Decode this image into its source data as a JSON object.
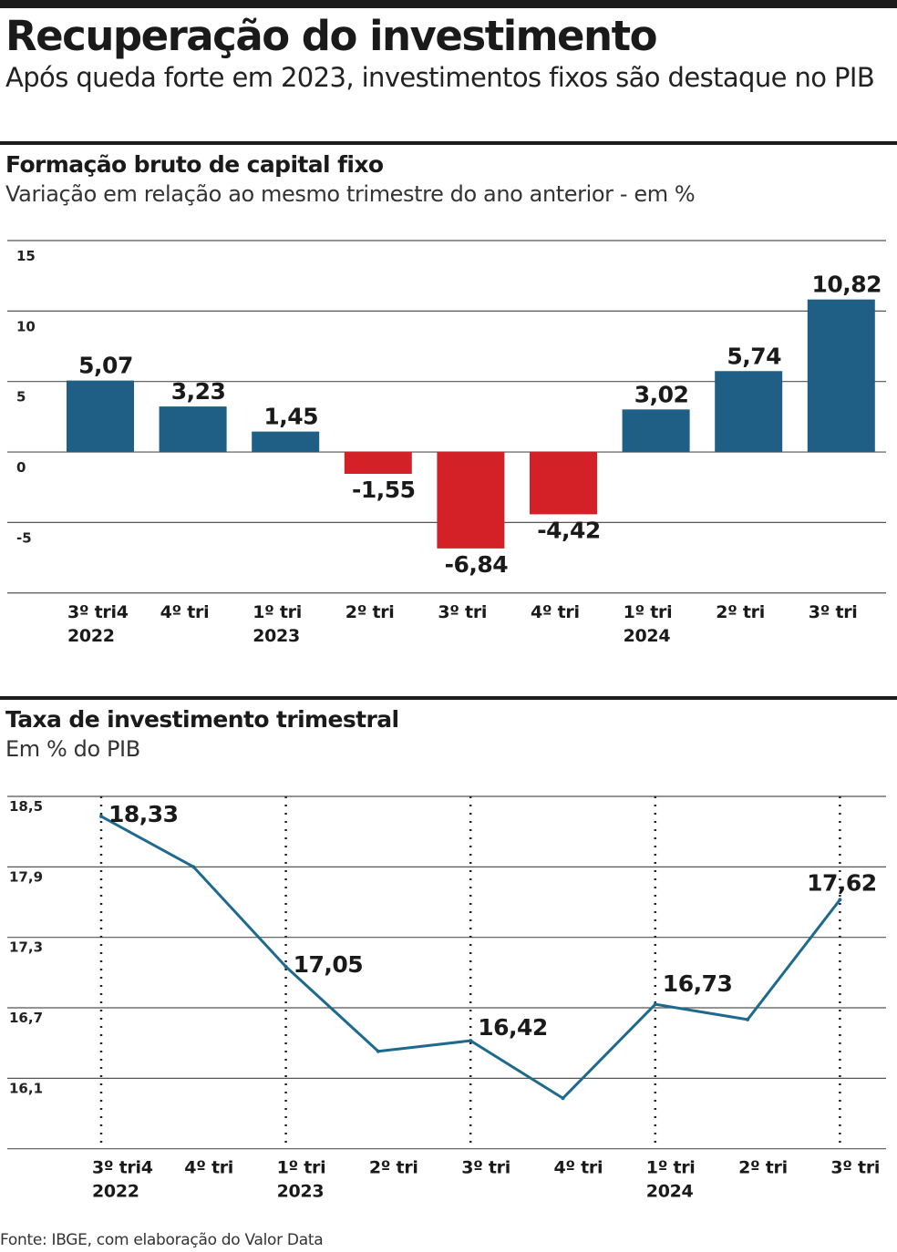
{
  "header": {
    "title": "Recuperação do investimento",
    "subtitle": "Após queda forte em 2023, investimentos fixos são destaque no PIB"
  },
  "colors": {
    "positive": "#1f5f86",
    "negative": "#d42027",
    "line": "#1e6a8e"
  },
  "chart_data": [
    {
      "type": "bar",
      "title": "Formação bruto de capital fixo",
      "subtitle": "Variação em relação ao mesmo trimestre do ano anterior - em %",
      "categories": [
        [
          "3º tri4",
          "2022"
        ],
        [
          "4º tri"
        ],
        [
          "1º tri",
          "2023"
        ],
        [
          "2º tri"
        ],
        [
          "3º tri"
        ],
        [
          "4º tri"
        ],
        [
          "1º tri",
          "2024"
        ],
        [
          "2º tri"
        ],
        [
          "3º tri"
        ]
      ],
      "values": [
        5.07,
        3.23,
        1.45,
        -1.55,
        -6.84,
        -4.42,
        3.02,
        5.74,
        10.82
      ],
      "data_labels": [
        "5,07",
        "3,23",
        "1,45",
        "-1,55",
        "-6,84",
        "-4,42",
        "3,02",
        "5,74",
        "10,82"
      ],
      "y_ticks": [
        "15",
        "10",
        "5",
        "0",
        "-5"
      ],
      "ylim": [
        -10,
        15
      ],
      "grid": true
    },
    {
      "type": "line",
      "title": "Taxa de investimento trimestral",
      "subtitle": "Em % do PIB",
      "categories": [
        [
          "3º tri4",
          "2022"
        ],
        [
          "4º tri"
        ],
        [
          "1º tri",
          "2023"
        ],
        [
          "2º tri"
        ],
        [
          "3º tri"
        ],
        [
          "4º tri"
        ],
        [
          "1º tri",
          "2024"
        ],
        [
          "2º tri"
        ],
        [
          "3º tri"
        ]
      ],
      "values": [
        18.33,
        17.9,
        17.05,
        16.33,
        16.42,
        15.93,
        16.73,
        16.6,
        17.62
      ],
      "data_labels": [
        "18,33",
        "",
        "17,05",
        "",
        "16,42",
        "",
        "16,73",
        "",
        "17,62"
      ],
      "y_ticks": [
        "18,5",
        "17,9",
        "17,3",
        "16,7",
        "16,1"
      ],
      "ylim": [
        15.5,
        18.5
      ],
      "grid": true
    }
  ],
  "source": "Fonte: IBGE, com elaboração do Valor Data"
}
